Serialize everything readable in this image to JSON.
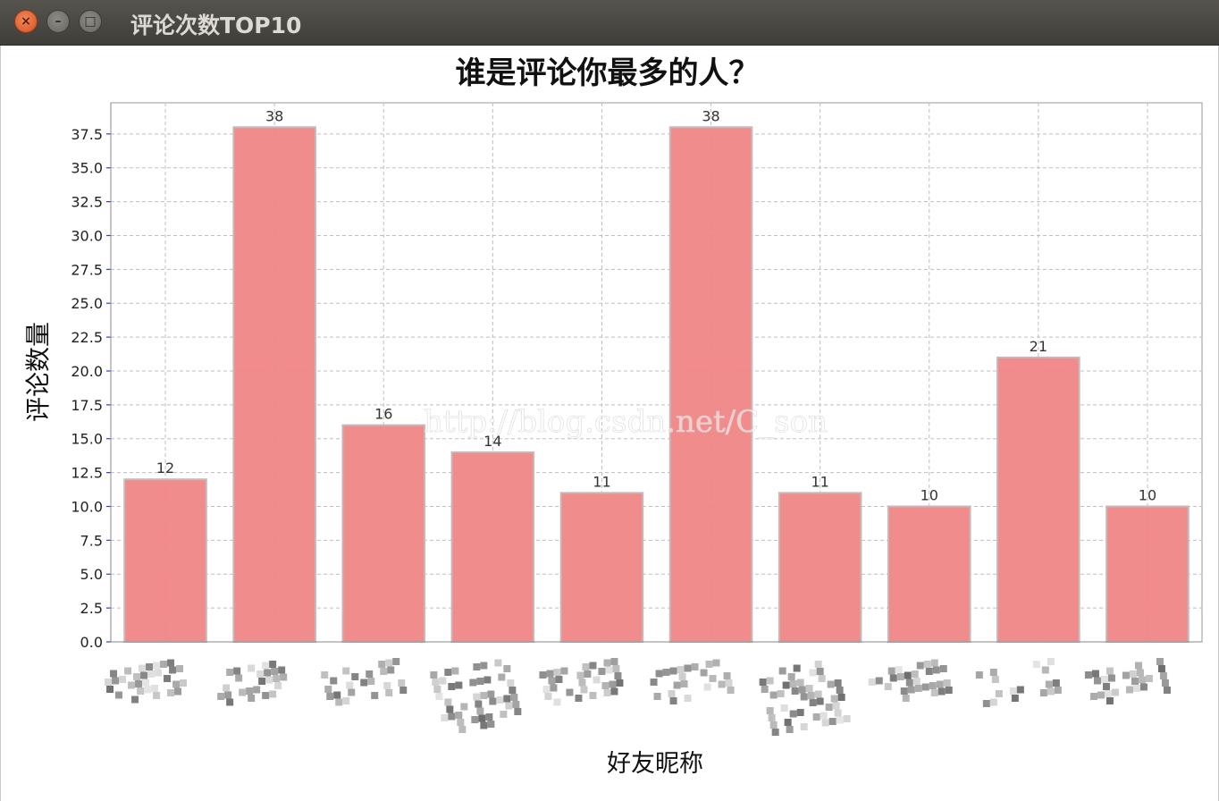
{
  "window": {
    "title": "评论次数TOP10"
  },
  "chart_data": {
    "type": "bar",
    "title": "谁是评论你最多的人？",
    "xlabel": "好友昵称",
    "ylabel": "评论数量",
    "categories": [
      "",
      "",
      "",
      "",
      "",
      "",
      "",
      "",
      "",
      ""
    ],
    "values": [
      12,
      38,
      16,
      14,
      11,
      38,
      11,
      10,
      21,
      10
    ],
    "data_labels": [
      "12",
      "38",
      "16",
      "14",
      "11",
      "38",
      "11",
      "10",
      "21",
      "10"
    ],
    "ylim": [
      0,
      39.8
    ],
    "yticks": [
      "0.0",
      "2.5",
      "5.0",
      "7.5",
      "10.0",
      "12.5",
      "15.0",
      "17.5",
      "20.0",
      "22.5",
      "25.0",
      "27.5",
      "30.0",
      "32.5",
      "35.0",
      "37.5"
    ],
    "grid": true,
    "legend": "none",
    "bar_color": "#f08686",
    "bar_edge_color": "#c8b8b8",
    "grid_color": "#bfbfbf",
    "axis_color": "#9a9a9a",
    "tick_mark_color": "#2b3ddb",
    "watermark": "http://blog.csdn.net/C_son",
    "x_tick_labels_obscured": true
  }
}
